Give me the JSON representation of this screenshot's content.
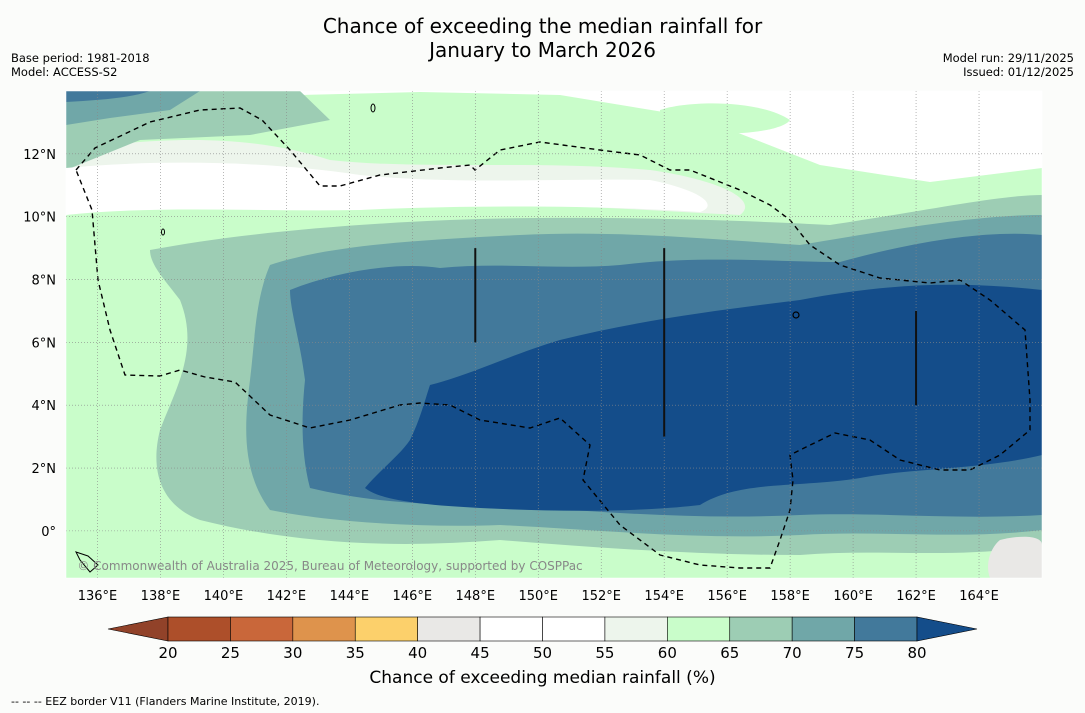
{
  "header": {
    "title_line1": "Chance of exceeding the median rainfall for",
    "title_line2": "January to March 2026",
    "base_period": "Base period: 1981-2018",
    "model": "Model: ACCESS-S2",
    "model_run": "Model run: 29/11/2025",
    "issued": "Issued: 01/12/2025"
  },
  "map": {
    "lon_range": [
      135,
      166
    ],
    "lat_range": [
      -1.5,
      14
    ],
    "lon_ticks": [
      136,
      138,
      140,
      142,
      144,
      146,
      148,
      150,
      152,
      154,
      156,
      158,
      160,
      162,
      164
    ],
    "lon_labels": [
      "136°E",
      "138°E",
      "140°E",
      "142°E",
      "144°E",
      "146°E",
      "148°E",
      "150°E",
      "152°E",
      "154°E",
      "156°E",
      "158°E",
      "160°E",
      "162°E",
      "164°E"
    ],
    "lat_ticks": [
      0,
      2,
      4,
      6,
      8,
      10,
      12
    ],
    "lat_labels": [
      "0°",
      "2°N",
      "4°N",
      "6°N",
      "8°N",
      "10°N",
      "12°N"
    ],
    "copyright": "© Commonwealth of Australia 2025, Bureau of Meteorology, supported by COSPPac",
    "dividers": [
      {
        "lon": 148,
        "lat_from": 6,
        "lat_to": 9
      },
      {
        "lon": 154,
        "lat_from": 3,
        "lat_to": 9
      },
      {
        "lon": 162,
        "lat_from": 4,
        "lat_to": 7
      }
    ]
  },
  "colorbar": {
    "levels": [
      20,
      25,
      30,
      35,
      40,
      45,
      50,
      55,
      60,
      65,
      70,
      75,
      80
    ],
    "colors": [
      "#ad4f2a",
      "#c9673a",
      "#de934c",
      "#fcd06b",
      "#e9e8e6",
      "#ffffff",
      "#ffffff",
      "#edf5ec",
      "#c9fdca",
      "#9dcdb4",
      "#70a7a8",
      "#42799b"
    ],
    "under_color": "#914229",
    "over_color": "#144d8a",
    "label": "Chance of exceeding median rainfall (%)"
  },
  "legend": {
    "eez_text": "-- -- -- EEZ border V11 (Flanders Marine Institute, 2019)."
  }
}
